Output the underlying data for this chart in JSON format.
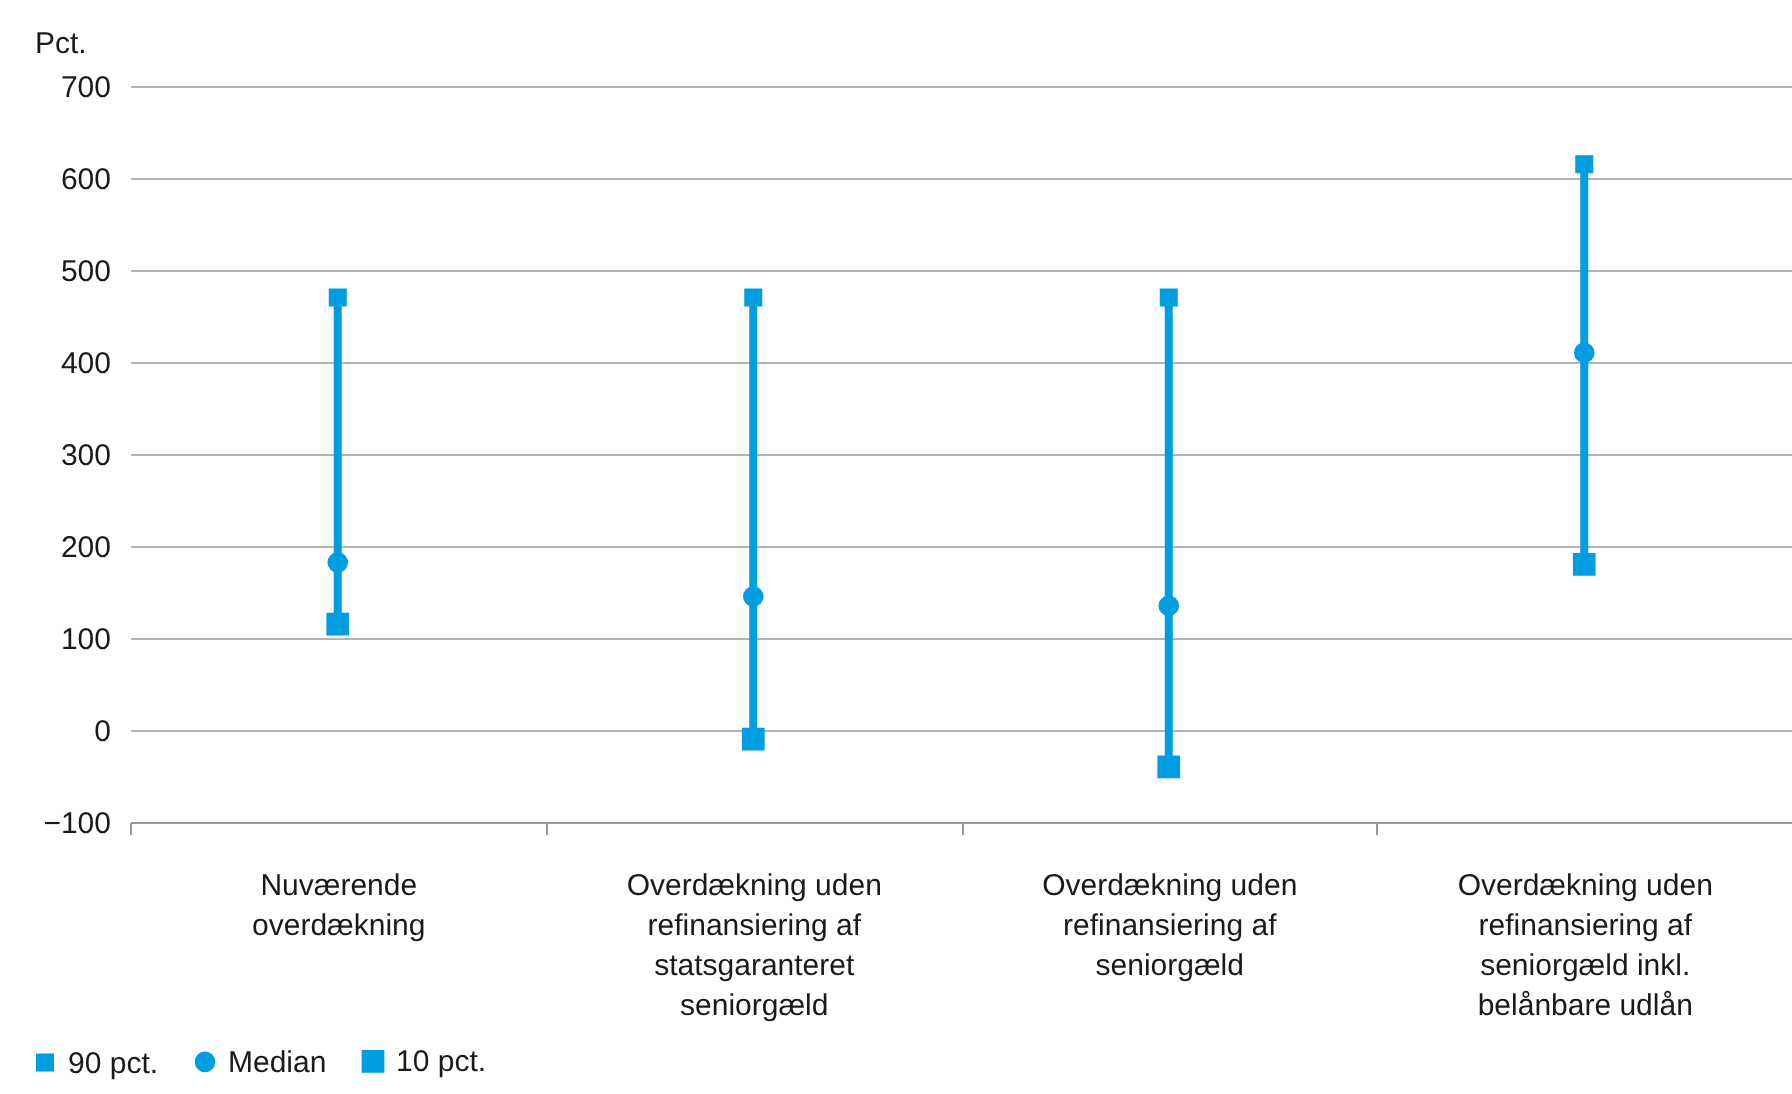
{
  "chart_data": {
    "type": "scatter",
    "ylabel": "Pct.",
    "categories": [
      "Nuværende\noverdækning",
      "Overdækning uden\nrefinansiering af\nstatsgaranteret\nseniorgæld",
      "Overdækning uden\nrefinansiering af\nseniorgæld",
      "Overdækning uden\nrefinansiering af\nseniorgæld inkl.\nbelånbare udlån"
    ],
    "series": [
      {
        "name": "90 pct.",
        "color": "#009ee0",
        "marker": "square",
        "values": [
          470,
          470,
          470,
          615
        ]
      },
      {
        "name": "Median",
        "color": "#009ee0",
        "marker": "circle",
        "values": [
          182,
          145,
          135,
          410
        ]
      },
      {
        "name": "10 pct.",
        "color": "#009ee0",
        "marker": "square",
        "values": [
          115,
          -10,
          -40,
          180
        ]
      }
    ],
    "ylim": [
      -100,
      700
    ],
    "yticks": [
      -100,
      0,
      100,
      200,
      300,
      400,
      500,
      600,
      700
    ],
    "grid": "y",
    "legend": "bottom"
  }
}
